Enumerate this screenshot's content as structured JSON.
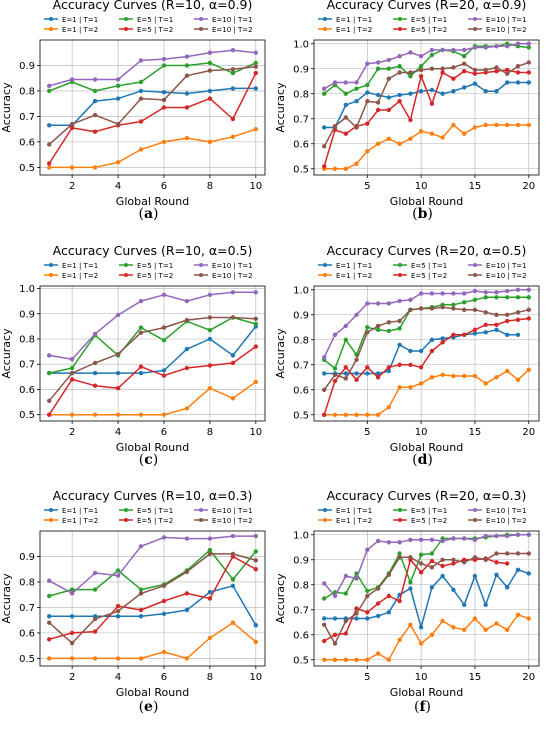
{
  "colors": {
    "E1T1": "#1f77b4",
    "E1T2": "#ff7f0e",
    "E5T1": "#2ca02c",
    "E5T2": "#d62728",
    "E10T1": "#9467bd",
    "E10T2": "#8c564b"
  },
  "chart_data": [
    {
      "id": "a",
      "caption_label": "a",
      "type": "line",
      "title": "Accuracy Curves (R=10, α=0.9)",
      "xlabel": "Global Round",
      "ylabel": "Accuracy",
      "xlim": [
        0.6,
        10.4
      ],
      "ylim": [
        0.47,
        1.0
      ],
      "xticks": [
        2,
        4,
        6,
        8,
        10
      ],
      "yticks": [
        0.5,
        0.6,
        0.7,
        0.8,
        0.9
      ],
      "grid": true,
      "legend_position": "top",
      "x": [
        1,
        2,
        3,
        4,
        5,
        6,
        7,
        8,
        9,
        10
      ],
      "series": [
        {
          "name": "E=1 | T=1",
          "key": "E1T1",
          "values": [
            0.665,
            0.665,
            0.76,
            0.77,
            0.8,
            0.795,
            0.79,
            0.8,
            0.81,
            0.81
          ]
        },
        {
          "name": "E=1 | T=2",
          "key": "E1T2",
          "values": [
            0.5,
            0.5,
            0.5,
            0.52,
            0.57,
            0.6,
            0.615,
            0.6,
            0.62,
            0.65
          ]
        },
        {
          "name": "E=5 | T=1",
          "key": "E5T1",
          "values": [
            0.8,
            0.835,
            0.8,
            0.82,
            0.835,
            0.9,
            0.9,
            0.91,
            0.87,
            0.91
          ]
        },
        {
          "name": "E=5 | T=2",
          "key": "E5T2",
          "values": [
            0.515,
            0.655,
            0.64,
            0.665,
            0.68,
            0.735,
            0.735,
            0.77,
            0.69,
            0.87
          ]
        },
        {
          "name": "E=10 | T=1",
          "key": "E10T1",
          "values": [
            0.82,
            0.845,
            0.845,
            0.845,
            0.92,
            0.925,
            0.935,
            0.95,
            0.96,
            0.95
          ]
        },
        {
          "name": "E=10 | T=2",
          "key": "E10T2",
          "values": [
            0.59,
            0.67,
            0.705,
            0.67,
            0.77,
            0.765,
            0.86,
            0.88,
            0.885,
            0.895
          ]
        }
      ]
    },
    {
      "id": "b",
      "caption_label": "b",
      "type": "line",
      "title": "Accuracy Curves (R=20, α=0.9)",
      "xlabel": "Global Round",
      "ylabel": "Accuracy",
      "xlim": [
        0.05,
        20.95
      ],
      "ylim": [
        0.475,
        1.015
      ],
      "xticks": [
        5,
        10,
        15,
        20
      ],
      "yticks": [
        0.5,
        0.6,
        0.7,
        0.8,
        0.9,
        1.0
      ],
      "grid": true,
      "legend_position": "top",
      "x": [
        1,
        2,
        3,
        4,
        5,
        6,
        7,
        8,
        9,
        10,
        11,
        12,
        13,
        14,
        15,
        16,
        17,
        18,
        19,
        20
      ],
      "series": [
        {
          "name": "E=1 | T=1",
          "key": "E1T1",
          "values": [
            0.665,
            0.665,
            0.755,
            0.77,
            0.805,
            0.795,
            0.785,
            0.795,
            0.8,
            0.81,
            0.815,
            0.8,
            0.81,
            0.825,
            0.84,
            0.81,
            0.81,
            0.845,
            0.845,
            0.845
          ]
        },
        {
          "name": "E=1 | T=2",
          "key": "E1T2",
          "values": [
            0.5,
            0.5,
            0.5,
            0.52,
            0.57,
            0.6,
            0.62,
            0.6,
            0.62,
            0.65,
            0.64,
            0.625,
            0.675,
            0.64,
            0.665,
            0.675,
            0.675,
            0.675,
            0.675,
            0.675
          ]
        },
        {
          "name": "E=5 | T=1",
          "key": "E5T1",
          "values": [
            0.8,
            0.835,
            0.8,
            0.82,
            0.835,
            0.9,
            0.9,
            0.91,
            0.87,
            0.91,
            0.955,
            0.975,
            0.97,
            0.95,
            0.99,
            0.99,
            0.99,
            1.0,
            0.99,
            0.985
          ]
        },
        {
          "name": "E=5 | T=2",
          "key": "E5T2",
          "values": [
            0.51,
            0.655,
            0.64,
            0.67,
            0.68,
            0.735,
            0.735,
            0.77,
            0.695,
            0.87,
            0.76,
            0.885,
            0.86,
            0.89,
            0.88,
            0.885,
            0.89,
            0.895,
            0.885,
            0.885
          ]
        },
        {
          "name": "E=10 | T=1",
          "key": "E10T1",
          "values": [
            0.82,
            0.845,
            0.845,
            0.845,
            0.92,
            0.925,
            0.935,
            0.95,
            0.965,
            0.95,
            0.975,
            0.975,
            0.975,
            0.975,
            0.985,
            0.985,
            0.99,
            0.99,
            1.0,
            1.0
          ]
        },
        {
          "name": "E=10 | T=2",
          "key": "E10T2",
          "values": [
            0.59,
            0.67,
            0.705,
            0.665,
            0.77,
            0.765,
            0.86,
            0.885,
            0.885,
            0.895,
            0.9,
            0.9,
            0.905,
            0.92,
            0.895,
            0.895,
            0.905,
            0.88,
            0.91,
            0.925
          ]
        }
      ]
    },
    {
      "id": "c",
      "caption_label": "c",
      "type": "line",
      "title": "Accuracy Curves (R=10, α=0.5)",
      "xlabel": "Global Round",
      "ylabel": "Accuracy",
      "xlim": [
        0.6,
        10.4
      ],
      "ylim": [
        0.475,
        1.01
      ],
      "xticks": [
        2,
        4,
        6,
        8,
        10
      ],
      "yticks": [
        0.5,
        0.6,
        0.7,
        0.8,
        0.9,
        1.0
      ],
      "grid": true,
      "legend_position": "top",
      "x": [
        1,
        2,
        3,
        4,
        5,
        6,
        7,
        8,
        9,
        10
      ],
      "series": [
        {
          "name": "E=1 | T=1",
          "key": "E1T1",
          "values": [
            0.665,
            0.665,
            0.665,
            0.665,
            0.665,
            0.675,
            0.76,
            0.8,
            0.735,
            0.85
          ]
        },
        {
          "name": "E=1 | T=2",
          "key": "E1T2",
          "values": [
            0.5,
            0.5,
            0.5,
            0.5,
            0.5,
            0.5,
            0.525,
            0.605,
            0.565,
            0.63
          ]
        },
        {
          "name": "E=5 | T=1",
          "key": "E5T1",
          "values": [
            0.665,
            0.685,
            0.815,
            0.735,
            0.845,
            0.795,
            0.87,
            0.835,
            0.885,
            0.86
          ]
        },
        {
          "name": "E=5 | T=2",
          "key": "E5T2",
          "values": [
            0.5,
            0.64,
            0.615,
            0.605,
            0.69,
            0.655,
            0.685,
            0.695,
            0.705,
            0.77
          ]
        },
        {
          "name": "E=10 | T=1",
          "key": "E10T1",
          "values": [
            0.735,
            0.72,
            0.82,
            0.895,
            0.95,
            0.975,
            0.95,
            0.975,
            0.985,
            0.985
          ]
        },
        {
          "name": "E=10 | T=2",
          "key": "E10T2",
          "values": [
            0.555,
            0.665,
            0.705,
            0.74,
            0.825,
            0.845,
            0.875,
            0.885,
            0.885,
            0.88
          ]
        }
      ]
    },
    {
      "id": "d",
      "caption_label": "d",
      "type": "line",
      "title": "Accuracy Curves (R=20, α=0.5)",
      "xlabel": "Global Round",
      "ylabel": "Accuracy",
      "xlim": [
        0.05,
        20.95
      ],
      "ylim": [
        0.475,
        1.015
      ],
      "xticks": [
        5,
        10,
        15,
        20
      ],
      "yticks": [
        0.5,
        0.6,
        0.7,
        0.8,
        0.9,
        1.0
      ],
      "grid": true,
      "legend_position": "top",
      "x": [
        1,
        2,
        3,
        4,
        5,
        6,
        7,
        8,
        9,
        10,
        11,
        12,
        13,
        14,
        15,
        16,
        17,
        18,
        19,
        20
      ],
      "series": [
        {
          "name": "E=1 | T=1",
          "key": "E1T1",
          "values": [
            0.665,
            0.665,
            0.665,
            0.665,
            0.665,
            0.665,
            0.675,
            0.78,
            0.755,
            0.755,
            0.8,
            0.805,
            0.81,
            0.82,
            0.825,
            0.83,
            0.84,
            0.82,
            0.82,
            null
          ]
        },
        {
          "name": "E=1 | T=2",
          "key": "E1T2",
          "values": [
            0.5,
            0.5,
            0.5,
            0.5,
            0.5,
            0.5,
            0.53,
            0.61,
            0.61,
            0.625,
            0.65,
            0.66,
            0.655,
            0.655,
            0.655,
            0.625,
            0.65,
            0.675,
            0.64,
            0.68
          ]
        },
        {
          "name": "E=5 | T=1",
          "key": "E5T1",
          "values": [
            0.72,
            0.685,
            0.8,
            0.74,
            0.85,
            0.84,
            0.835,
            0.845,
            0.92,
            0.925,
            0.93,
            0.94,
            0.94,
            0.95,
            0.96,
            0.97,
            0.97,
            0.97,
            0.97,
            0.97
          ]
        },
        {
          "name": "E=5 | T=2",
          "key": "E5T2",
          "values": [
            0.5,
            0.635,
            0.69,
            0.64,
            0.69,
            0.65,
            0.69,
            0.7,
            0.7,
            0.69,
            0.755,
            0.79,
            0.82,
            0.82,
            0.84,
            0.86,
            0.86,
            0.875,
            0.88,
            0.885
          ]
        },
        {
          "name": "E=10 | T=1",
          "key": "E10T1",
          "values": [
            0.73,
            0.82,
            0.855,
            0.9,
            0.945,
            0.945,
            0.945,
            0.955,
            0.96,
            0.985,
            0.985,
            0.985,
            0.985,
            0.985,
            0.995,
            0.99,
            0.99,
            0.995,
            1.0,
            1.0
          ]
        },
        {
          "name": "E=10 | T=2",
          "key": "E10T2",
          "values": [
            0.6,
            0.66,
            0.645,
            0.72,
            0.83,
            0.855,
            0.87,
            0.875,
            0.92,
            0.925,
            0.925,
            0.93,
            0.925,
            0.92,
            0.92,
            0.91,
            0.9,
            0.9,
            0.91,
            0.92
          ]
        }
      ]
    },
    {
      "id": "e",
      "caption_label": "e",
      "type": "line",
      "title": "Accuracy Curves (R=10, α=0.3)",
      "xlabel": "Global Round",
      "ylabel": "Accuracy",
      "xlim": [
        0.6,
        10.4
      ],
      "ylim": [
        0.47,
        1.0
      ],
      "xticks": [
        2,
        4,
        6,
        8,
        10
      ],
      "yticks": [
        0.5,
        0.6,
        0.7,
        0.8,
        0.9
      ],
      "grid": true,
      "legend_position": "top",
      "x": [
        1,
        2,
        3,
        4,
        5,
        6,
        7,
        8,
        9,
        10
      ],
      "series": [
        {
          "name": "E=1 | T=1",
          "key": "E1T1",
          "values": [
            0.665,
            0.665,
            0.665,
            0.665,
            0.665,
            0.675,
            0.69,
            0.76,
            0.785,
            0.63
          ]
        },
        {
          "name": "E=1 | T=2",
          "key": "E1T2",
          "values": [
            0.5,
            0.5,
            0.5,
            0.5,
            0.5,
            0.525,
            0.5,
            0.58,
            0.64,
            0.565
          ]
        },
        {
          "name": "E=5 | T=1",
          "key": "E5T1",
          "values": [
            0.745,
            0.77,
            0.77,
            0.845,
            0.77,
            0.79,
            0.845,
            0.925,
            0.81,
            0.92
          ]
        },
        {
          "name": "E=5 | T=2",
          "key": "E5T2",
          "values": [
            0.575,
            0.6,
            0.605,
            0.705,
            0.69,
            0.725,
            0.755,
            0.735,
            0.9,
            0.85
          ]
        },
        {
          "name": "E=10 | T=1",
          "key": "E10T1",
          "values": [
            0.805,
            0.755,
            0.835,
            0.825,
            0.94,
            0.975,
            0.97,
            0.97,
            0.98,
            0.98
          ]
        },
        {
          "name": "E=10 | T=2",
          "key": "E10T2",
          "values": [
            0.64,
            0.56,
            0.655,
            0.685,
            0.755,
            0.785,
            0.84,
            0.91,
            0.91,
            0.885
          ]
        }
      ]
    },
    {
      "id": "f",
      "caption_label": "f",
      "type": "line",
      "title": "Accuracy Curves (R=20, α=0.3)",
      "xlabel": "Global Round",
      "ylabel": "Accuracy",
      "xlim": [
        0.05,
        20.95
      ],
      "ylim": [
        0.475,
        1.015
      ],
      "xticks": [
        5,
        10,
        15,
        20
      ],
      "yticks": [
        0.5,
        0.6,
        0.7,
        0.8,
        0.9,
        1.0
      ],
      "grid": true,
      "legend_position": "top",
      "x": [
        1,
        2,
        3,
        4,
        5,
        6,
        7,
        8,
        9,
        10,
        11,
        12,
        13,
        14,
        15,
        16,
        17,
        18,
        19,
        20
      ],
      "series": [
        {
          "name": "E=1 | T=1",
          "key": "E1T1",
          "values": [
            0.665,
            0.665,
            0.665,
            0.665,
            0.665,
            0.675,
            0.69,
            0.76,
            0.785,
            0.63,
            0.79,
            0.835,
            0.78,
            0.72,
            0.835,
            0.72,
            0.84,
            0.79,
            0.86,
            0.845
          ]
        },
        {
          "name": "E=1 | T=2",
          "key": "E1T2",
          "values": [
            0.5,
            0.5,
            0.5,
            0.5,
            0.5,
            0.525,
            0.5,
            0.58,
            0.64,
            0.565,
            0.6,
            0.655,
            0.63,
            0.62,
            0.665,
            0.62,
            0.645,
            0.62,
            0.68,
            0.665
          ]
        },
        {
          "name": "E=5 | T=1",
          "key": "E5T1",
          "values": [
            0.745,
            0.77,
            0.765,
            0.845,
            0.775,
            0.79,
            0.845,
            0.925,
            0.81,
            0.92,
            0.925,
            0.985,
            0.985,
            0.985,
            0.985,
            0.99,
            0.995,
            1.0,
            1.0,
            1.0
          ]
        },
        {
          "name": "E=5 | T=2",
          "key": "E5T2",
          "values": [
            0.575,
            0.6,
            0.605,
            0.705,
            0.69,
            0.725,
            0.755,
            0.735,
            0.9,
            0.85,
            0.895,
            0.875,
            0.885,
            0.9,
            0.9,
            0.905,
            0.89,
            0.885,
            null,
            null
          ]
        },
        {
          "name": "E=10 | T=1",
          "key": "E10T1",
          "values": [
            0.805,
            0.755,
            0.835,
            0.825,
            0.94,
            0.975,
            0.97,
            0.97,
            0.98,
            0.98,
            0.98,
            0.975,
            0.985,
            0.985,
            0.98,
            0.995,
            0.995,
            0.995,
            1.0,
            1.0
          ]
        },
        {
          "name": "E=10 | T=2",
          "key": "E10T2",
          "values": [
            0.64,
            0.565,
            0.655,
            0.685,
            0.755,
            0.785,
            0.84,
            0.91,
            0.91,
            0.885,
            0.87,
            0.9,
            0.9,
            0.89,
            0.91,
            0.9,
            0.925,
            0.925,
            0.925,
            0.925
          ]
        }
      ]
    }
  ]
}
